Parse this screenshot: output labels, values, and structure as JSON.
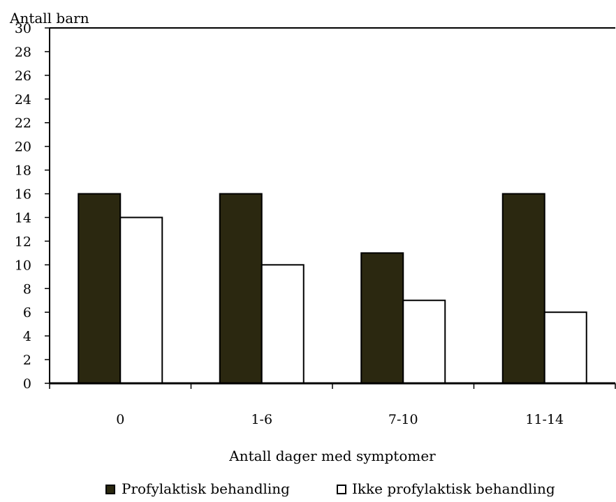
{
  "chart_data": {
    "type": "bar",
    "title": "",
    "ylabel": "Antall barn",
    "xlabel": "Antall dager med symptomer",
    "categories": [
      "0",
      "1-6",
      "7-10",
      "11-14"
    ],
    "ylim": [
      0,
      30
    ],
    "yticks": [
      0,
      2,
      4,
      6,
      8,
      10,
      12,
      14,
      16,
      18,
      20,
      22,
      24,
      26,
      28,
      30
    ],
    "grid": false,
    "legend_position": "bottom",
    "series": [
      {
        "name": "Profylaktisk behandling",
        "values": [
          16,
          16,
          11,
          16
        ],
        "color": "#2b2810"
      },
      {
        "name": "Ikke profylaktisk behandling",
        "values": [
          14,
          10,
          7,
          6
        ],
        "color": "#ffffff"
      }
    ]
  }
}
